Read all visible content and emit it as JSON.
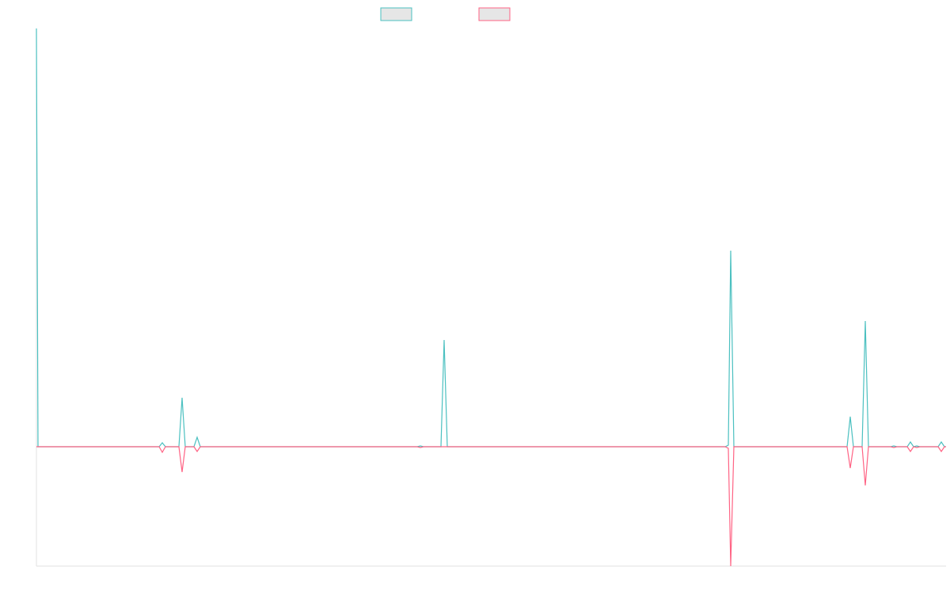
{
  "chart_data": {
    "type": "line",
    "x": [
      0,
      2,
      155,
      159,
      163,
      180,
      184,
      188,
      199,
      203,
      207,
      481,
      485,
      489,
      511,
      515,
      519,
      870,
      874,
      877,
      881,
      1024,
      1028,
      1032,
      1043,
      1047,
      1051,
      1079,
      1083,
      1087,
      1100,
      1104,
      1108,
      1112,
      1116,
      1139,
      1143,
      1147,
      1149
    ],
    "xlim": [
      0,
      1149
    ],
    "ylim": [
      -151,
      529
    ],
    "series": [
      {
        "color": "#4bc0c0",
        "values": [
          529,
          0,
          0,
          5,
          0,
          0,
          62,
          0,
          0,
          12,
          0,
          0,
          1,
          0,
          0,
          135,
          0,
          0,
          2,
          248,
          0,
          0,
          38,
          0,
          0,
          159,
          0,
          0,
          1,
          0,
          0,
          6,
          0,
          1,
          0,
          0,
          6,
          0,
          0
        ]
      },
      {
        "color": "#ff6384",
        "values": [
          0,
          0,
          0,
          -7,
          0,
          0,
          -32,
          0,
          0,
          -6,
          0,
          0,
          -1,
          0,
          0,
          0,
          0,
          0,
          -2,
          -151,
          0,
          0,
          -27,
          0,
          0,
          -49,
          0,
          0,
          -1,
          0,
          0,
          -6,
          0,
          -1,
          0,
          0,
          -6,
          0,
          0
        ]
      }
    ]
  }
}
